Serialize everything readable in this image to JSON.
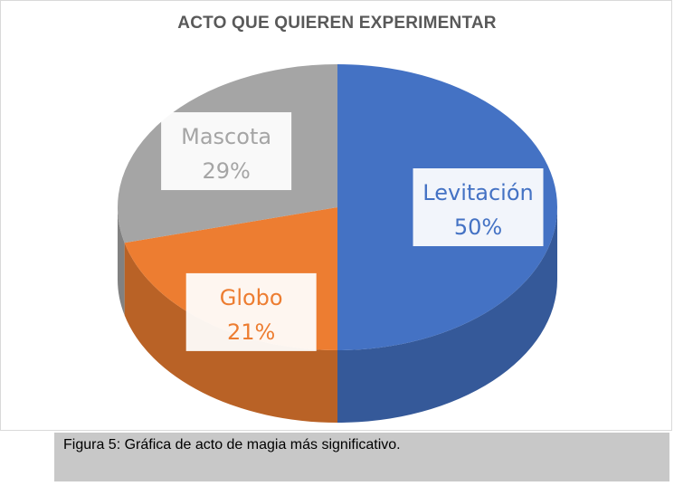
{
  "chart_data": {
    "type": "pie",
    "title": "ACTO QUE QUIEREN EXPERIMENTAR",
    "slices": [
      {
        "label": "Levitación",
        "value": 50,
        "value_label": "50%",
        "color": "#4472c4"
      },
      {
        "label": "Globo",
        "value": 21,
        "value_label": "21%",
        "color": "#ed7d31"
      },
      {
        "label": "Mascota",
        "value": 29,
        "value_label": "29%",
        "color": "#a5a5a5"
      }
    ],
    "style": "3D"
  },
  "caption": "Figura 5: Gráfica de acto de magia más significativo."
}
